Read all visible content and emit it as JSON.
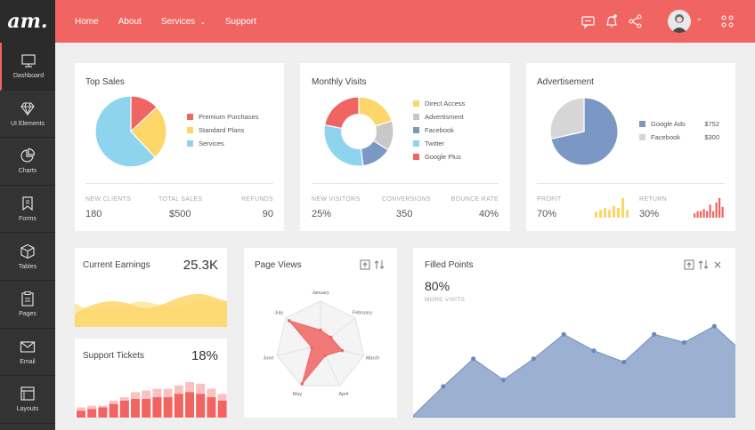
{
  "app": {
    "logo": "am."
  },
  "sidebar": {
    "items": [
      {
        "label": "Dashboard",
        "icon": "monitor-icon",
        "active": true
      },
      {
        "label": "UI Elements",
        "icon": "diamond-icon"
      },
      {
        "label": "Charts",
        "icon": "pie-chart-icon"
      },
      {
        "label": "Forms",
        "icon": "bookmark-icon"
      },
      {
        "label": "Tables",
        "icon": "cube-icon"
      },
      {
        "label": "Pages",
        "icon": "clipboard-icon"
      },
      {
        "label": "Email",
        "icon": "envelope-icon"
      },
      {
        "label": "Layouts",
        "icon": "layout-icon"
      }
    ]
  },
  "header": {
    "nav": [
      "Home",
      "About",
      "Services",
      "Support"
    ],
    "accent": "#f06461",
    "icons": [
      "chat-icon",
      "bell-icon",
      "share-icon",
      "avatar",
      "apps-icon"
    ]
  },
  "top_sales": {
    "title": "Top Sales",
    "legend": [
      {
        "label": "Premium Purchases",
        "color": "#f06461"
      },
      {
        "label": "Standard Plans",
        "color": "#fdd66a"
      },
      {
        "label": "Services",
        "color": "#8fd4ef"
      }
    ],
    "stats": [
      {
        "label": "NEW CLIENTS",
        "value": "180"
      },
      {
        "label": "TOTAL SALES",
        "value": "$500"
      },
      {
        "label": "REFUNDS",
        "value": "90"
      }
    ]
  },
  "monthly_visits": {
    "title": "Monthly Visits",
    "legend": [
      {
        "label": "Direct Access",
        "color": "#fdd66a"
      },
      {
        "label": "Advertisment",
        "color": "#c8c8c8"
      },
      {
        "label": "Facebook",
        "color": "#7b97c3"
      },
      {
        "label": "Twitter",
        "color": "#8fd4ef"
      },
      {
        "label": "Google Plus",
        "color": "#f06461"
      }
    ],
    "stats": [
      {
        "label": "NEW VISITORS",
        "value": "25%"
      },
      {
        "label": "CONVERSIONS",
        "value": "350"
      },
      {
        "label": "BOUNCE RATE",
        "value": "40%"
      }
    ]
  },
  "advertisement": {
    "title": "Advertisement",
    "legend": [
      {
        "label": "Google Ads",
        "value": "$752",
        "color": "#7b97c3"
      },
      {
        "label": "Facebook",
        "value": "$300",
        "color": "#d6d6d6"
      }
    ],
    "profit": {
      "label": "PROFIT",
      "value": "70%",
      "color": "#fdd66a"
    },
    "return": {
      "label": "RETURN",
      "value": "30%",
      "color": "#f06461"
    }
  },
  "current_earnings": {
    "title": "Current Earnings",
    "value": "25.3K",
    "color": "#fdd66a"
  },
  "support_tickets": {
    "title": "Support Tickets",
    "value": "18%",
    "color": "#f06461"
  },
  "page_views": {
    "title": "Page Views",
    "icons": [
      "upload-icon",
      "sort-icon"
    ],
    "axes": [
      "January",
      "February",
      "March",
      "April",
      "May",
      "June",
      "July"
    ]
  },
  "filled_points": {
    "title": "Filled Points",
    "value": "80%",
    "sub": "MORE VISITS",
    "icons": [
      "upload-icon",
      "sort-icon",
      "close-icon"
    ],
    "color": "#7b97c3"
  },
  "chart_data": [
    {
      "type": "pie",
      "name": "Top Sales",
      "labels": [
        "Premium Purchases",
        "Standard Plans",
        "Services"
      ],
      "values": [
        13,
        25,
        62
      ]
    },
    {
      "type": "pie",
      "name": "Monthly Visits",
      "labels": [
        "Direct Access",
        "Advertisment",
        "Facebook",
        "Twitter",
        "Google Plus"
      ],
      "values": [
        20,
        14,
        14,
        30,
        22
      ],
      "donut": true
    },
    {
      "type": "pie",
      "name": "Advertisement",
      "labels": [
        "Google Ads",
        "Facebook"
      ],
      "values": [
        752,
        300
      ]
    },
    {
      "type": "bar",
      "name": "Profit",
      "values": [
        3,
        4,
        5,
        4,
        6,
        5,
        10,
        4
      ]
    },
    {
      "type": "bar",
      "name": "Return",
      "values": [
        2,
        3,
        3,
        4,
        3,
        6,
        3,
        7,
        9,
        5
      ]
    },
    {
      "type": "area",
      "name": "Current Earnings",
      "values": [
        6,
        11,
        8,
        12,
        9,
        13,
        10,
        12,
        9
      ]
    },
    {
      "type": "bar",
      "name": "Support Tickets",
      "series": [
        {
          "values": [
            4,
            5,
            6,
            8,
            10,
            11,
            11,
            12,
            12,
            14,
            15,
            14,
            12,
            10
          ]
        },
        {
          "values": [
            6,
            7,
            7,
            10,
            12,
            15,
            16,
            17,
            17,
            19,
            21,
            20,
            17,
            14
          ]
        }
      ]
    },
    {
      "type": "radar",
      "name": "Page Views",
      "axes": [
        "January",
        "February",
        "March",
        "April",
        "May",
        "June",
        "July"
      ],
      "values": [
        0.35,
        0.3,
        0.5,
        0.25,
        0.95,
        0.2,
        0.9
      ]
    },
    {
      "type": "area",
      "name": "Filled Points",
      "values": [
        0,
        18,
        35,
        22,
        35,
        50,
        40,
        33,
        50,
        45,
        55,
        38
      ]
    }
  ]
}
